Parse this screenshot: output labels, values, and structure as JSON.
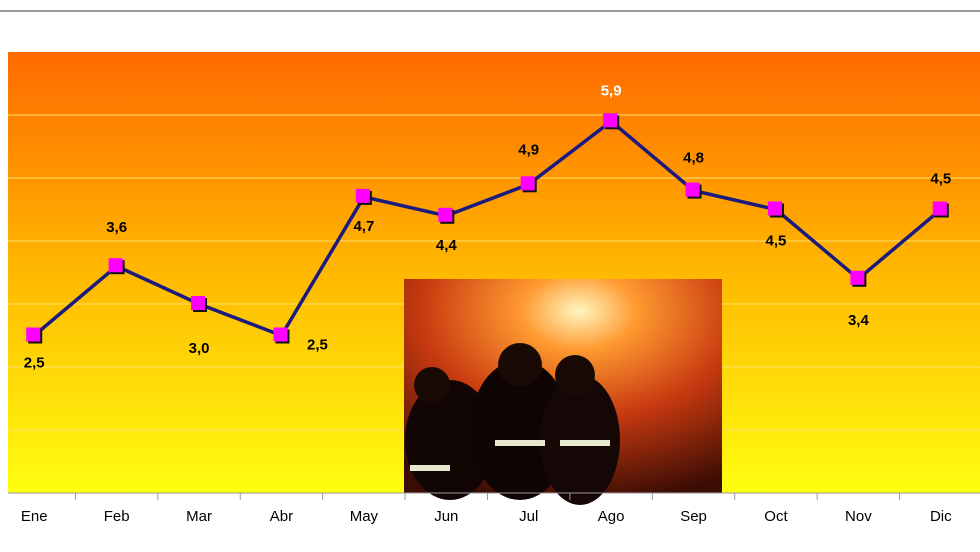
{
  "chart_data": {
    "type": "line",
    "categories": [
      "Ene",
      "Feb",
      "Mar",
      "Abr",
      "May",
      "Jun",
      "Jul",
      "Ago",
      "Sep",
      "Oct",
      "Nov",
      "Dic"
    ],
    "series": [
      {
        "color": "#1a1a80",
        "marker_color": "#ff00ff",
        "values": [
          2.5,
          3.6,
          3.0,
          2.5,
          4.7,
          4.4,
          4.9,
          5.9,
          4.8,
          4.5,
          3.4,
          4.5
        ],
        "value_labels": [
          "2,5",
          "3,6",
          "3,0",
          "2,5",
          "4,7",
          "4,4",
          "4,9",
          "5,9",
          "4,8",
          "4,5",
          "3,4",
          "4,5"
        ]
      }
    ],
    "ylim": [
      0,
      7
    ],
    "yticks": [
      0,
      1,
      2,
      3,
      4,
      5,
      6,
      7
    ],
    "grid": true
  }
}
